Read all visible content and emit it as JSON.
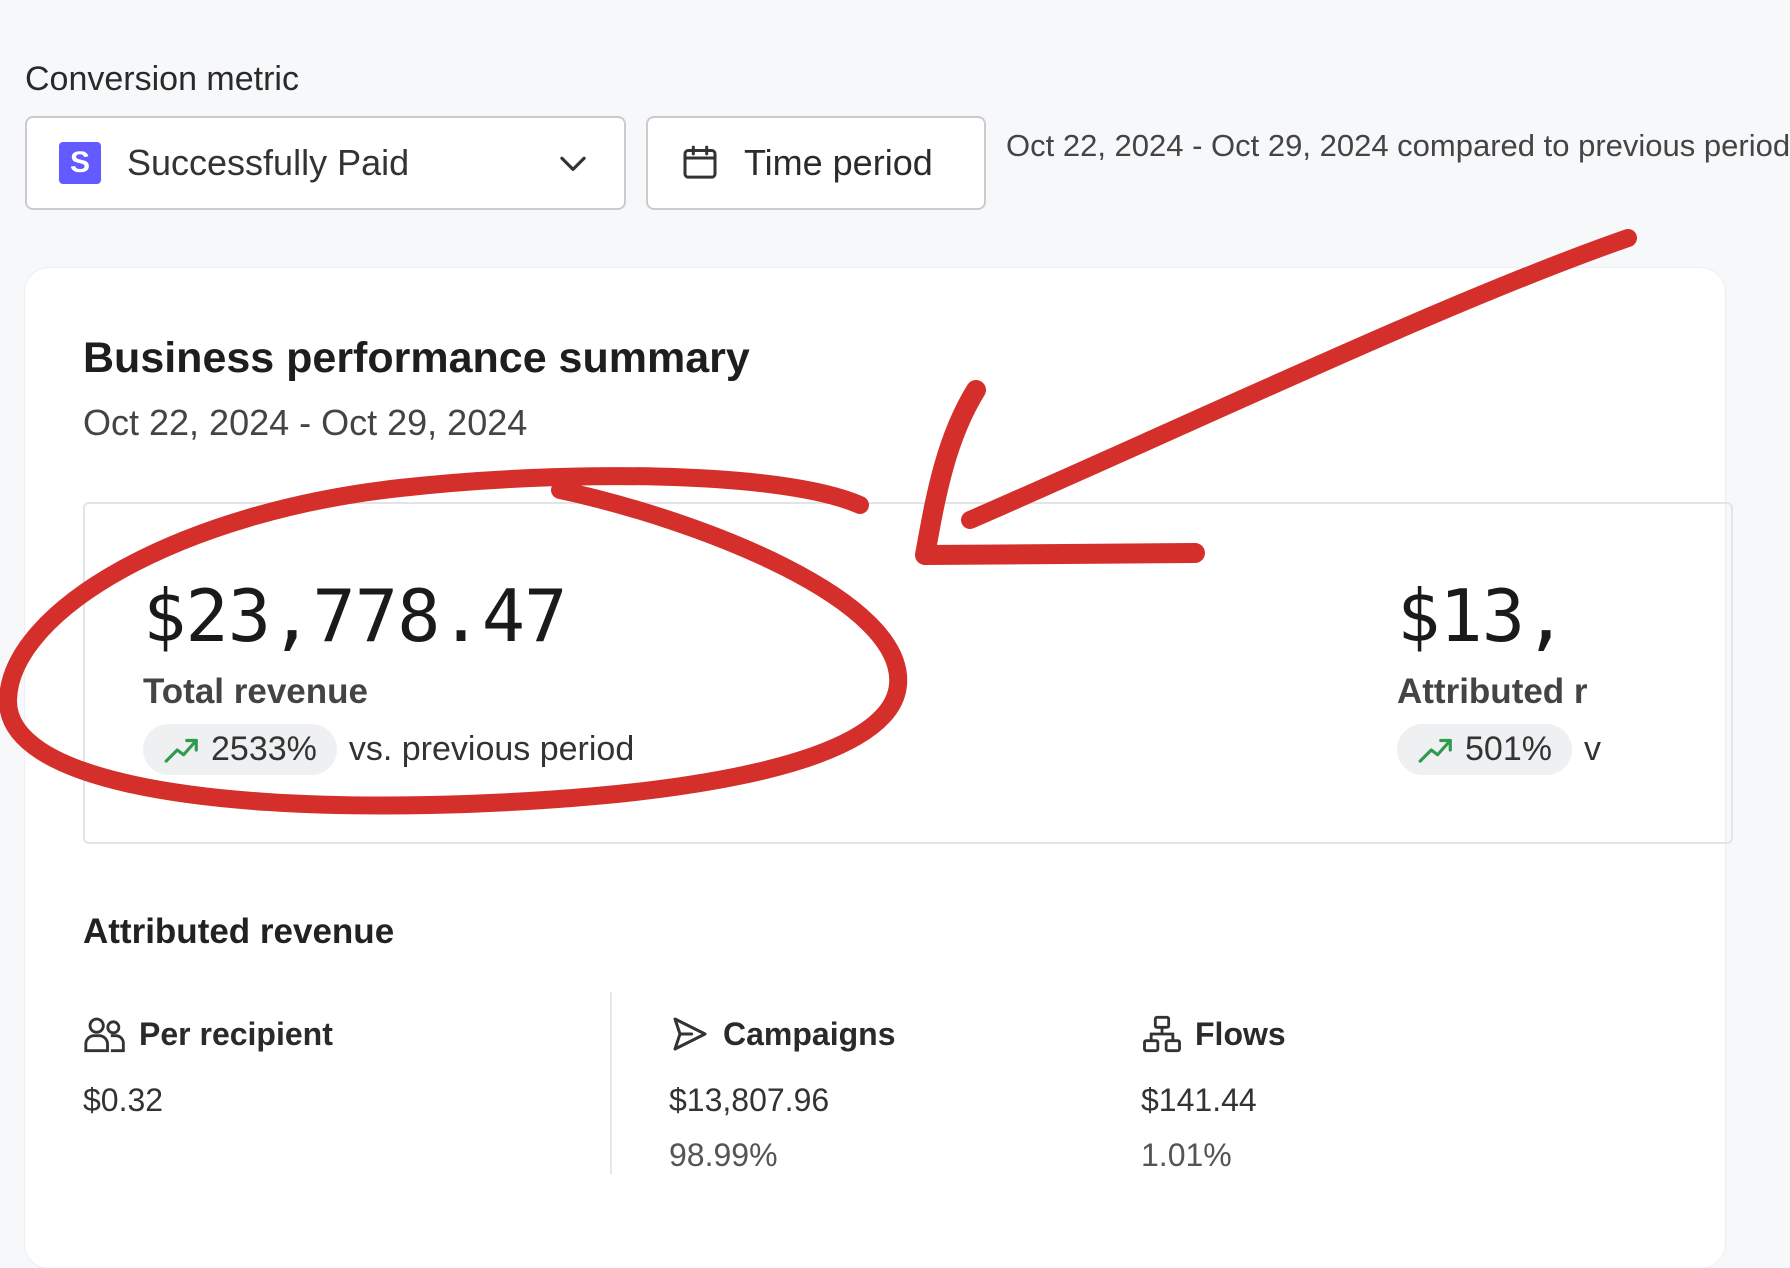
{
  "conversion_metric": {
    "label": "Conversion metric",
    "selected": "Successfully Paid",
    "logo_letter": "S"
  },
  "time_period": {
    "button_label": "Time period",
    "range_text": "Oct 22, 2024 - Oct 29, 2024 compared to previous period"
  },
  "summary": {
    "title": "Business performance summary",
    "date_range": "Oct 22, 2024 - Oct 29, 2024",
    "kpis": [
      {
        "value": "$23,778.47",
        "label": "Total revenue",
        "delta": "2533%",
        "delta_suffix": "vs. previous period"
      },
      {
        "value": "$13,",
        "label": "Attributed r",
        "delta": "501%",
        "delta_suffix": "v"
      }
    ]
  },
  "attributed_revenue": {
    "title": "Attributed revenue",
    "stats": [
      {
        "label": "Per recipient",
        "icon": "users-icon",
        "value": "$0.32",
        "percent": ""
      },
      {
        "label": "Campaigns",
        "icon": "send-icon",
        "value": "$13,807.96",
        "percent": "98.99%"
      },
      {
        "label": "Flows",
        "icon": "flow-icon",
        "value": "$141.44",
        "percent": "1.01%"
      }
    ]
  },
  "colors": {
    "stripe_purple": "#635bff",
    "trend_green": "#2e9b4f",
    "annotation_red": "#d42f2a"
  }
}
